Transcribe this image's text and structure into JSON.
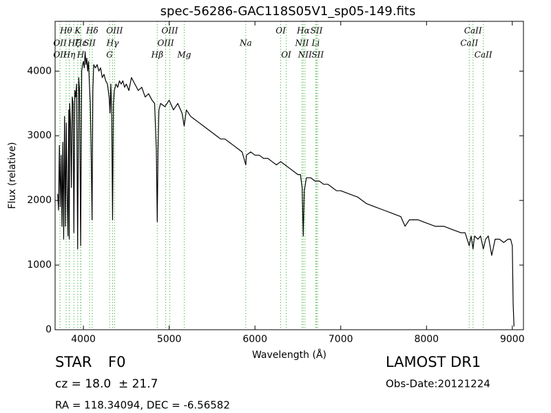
{
  "chart_data": {
    "type": "line",
    "title": "spec-56286-GAC118S05V1_sp05-149.fits",
    "x_label": "Wavelength (Å)",
    "y_label": "Flux (relative)",
    "xlim": [
      3670,
      9130
    ],
    "ylim": [
      0,
      4770
    ],
    "xticks": [
      4000,
      5000,
      6000,
      7000,
      8000,
      9000
    ],
    "yticks": [
      0,
      1000,
      2000,
      3000,
      4000
    ],
    "color": "#000000",
    "line_color": "#22aa22",
    "x": [
      3700,
      3710,
      3720,
      3730,
      3740,
      3750,
      3760,
      3770,
      3780,
      3790,
      3800,
      3810,
      3820,
      3830,
      3835,
      3840,
      3850,
      3860,
      3870,
      3880,
      3889,
      3900,
      3910,
      3920,
      3933,
      3945,
      3955,
      3968,
      3980,
      3990,
      4000,
      4010,
      4020,
      4030,
      4040,
      4050,
      4060,
      4070,
      4080,
      4090,
      4101,
      4110,
      4120,
      4140,
      4160,
      4180,
      4200,
      4220,
      4240,
      4260,
      4280,
      4300,
      4310,
      4320,
      4330,
      4340,
      4350,
      4360,
      4380,
      4400,
      4420,
      4440,
      4460,
      4480,
      4500,
      4530,
      4560,
      4600,
      4640,
      4680,
      4720,
      4760,
      4800,
      4830,
      4850,
      4861,
      4870,
      4880,
      4900,
      4950,
      5000,
      5050,
      5100,
      5150,
      5175,
      5200,
      5250,
      5300,
      5350,
      5400,
      5450,
      5500,
      5550,
      5600,
      5650,
      5700,
      5750,
      5800,
      5850,
      5893,
      5900,
      5950,
      6000,
      6050,
      6100,
      6150,
      6200,
      6250,
      6300,
      6350,
      6400,
      6450,
      6500,
      6530,
      6550,
      6563,
      6575,
      6600,
      6650,
      6700,
      6750,
      6800,
      6850,
      6900,
      6950,
      7000,
      7100,
      7200,
      7300,
      7400,
      7500,
      7600,
      7700,
      7750,
      7800,
      7900,
      8000,
      8100,
      8200,
      8300,
      8400,
      8450,
      8498,
      8520,
      8542,
      8560,
      8600,
      8630,
      8662,
      8690,
      8720,
      8760,
      8800,
      8850,
      8900,
      8950,
      8980,
      9000,
      9010,
      9020
    ],
    "values": [
      2100,
      1850,
      2850,
      1900,
      2700,
      1600,
      2900,
      1400,
      3300,
      1600,
      3200,
      2100,
      1450,
      3400,
      1400,
      3500,
      3200,
      2200,
      3600,
      3500,
      1500,
      3700,
      3600,
      3800,
      1250,
      3900,
      3700,
      1300,
      4000,
      4100,
      4150,
      4050,
      4300,
      4100,
      4200,
      4000,
      4150,
      3800,
      3500,
      2800,
      1700,
      3700,
      4100,
      4050,
      4100,
      4000,
      4050,
      3900,
      3950,
      3850,
      3800,
      3600,
      3350,
      3800,
      3300,
      1700,
      3500,
      3700,
      3800,
      3750,
      3850,
      3800,
      3850,
      3750,
      3800,
      3700,
      3900,
      3800,
      3700,
      3750,
      3600,
      3650,
      3550,
      3500,
      2800,
      1670,
      2800,
      3400,
      3500,
      3450,
      3550,
      3400,
      3500,
      3350,
      3150,
      3400,
      3300,
      3250,
      3200,
      3150,
      3100,
      3050,
      3000,
      2950,
      2950,
      2900,
      2850,
      2800,
      2750,
      2550,
      2700,
      2750,
      2700,
      2700,
      2650,
      2650,
      2600,
      2550,
      2600,
      2550,
      2500,
      2450,
      2400,
      2400,
      2200,
      1450,
      2150,
      2350,
      2350,
      2300,
      2300,
      2250,
      2250,
      2200,
      2150,
      2150,
      2100,
      2050,
      1950,
      1900,
      1850,
      1800,
      1750,
      1600,
      1700,
      1700,
      1650,
      1600,
      1600,
      1550,
      1500,
      1500,
      1300,
      1450,
      1250,
      1450,
      1400,
      1450,
      1250,
      1400,
      1450,
      1150,
      1400,
      1400,
      1350,
      1400,
      1400,
      1300,
      400,
      50
    ],
    "lines": [
      {
        "label": "OII",
        "wavelength": 3727
      },
      {
        "label": "OII",
        "wavelength": 3727
      },
      {
        "label": "Hθ",
        "wavelength": 3798
      },
      {
        "label": "Hη",
        "wavelength": 3835
      },
      {
        "label": "Hζ",
        "wavelength": 3889
      },
      {
        "label": "K",
        "wavelength": 3934
      },
      {
        "label": "H",
        "wavelength": 3968
      },
      {
        "label": "Hε",
        "wavelength": 3970
      },
      {
        "label": "SII",
        "wavelength": 4072
      },
      {
        "label": "Hδ",
        "wavelength": 4102
      },
      {
        "label": "G",
        "wavelength": 4305
      },
      {
        "label": "Hγ",
        "wavelength": 4340
      },
      {
        "label": "OIII",
        "wavelength": 4363
      },
      {
        "label": "Hβ",
        "wavelength": 4861
      },
      {
        "label": "OIII",
        "wavelength": 4959
      },
      {
        "label": "OIII",
        "wavelength": 5007
      },
      {
        "label": "Mg",
        "wavelength": 5175
      },
      {
        "label": "Na",
        "wavelength": 5893
      },
      {
        "label": "OI",
        "wavelength": 6300
      },
      {
        "label": "OI",
        "wavelength": 6364
      },
      {
        "label": "NII",
        "wavelength": 6548
      },
      {
        "label": "Hα",
        "wavelength": 6563
      },
      {
        "label": "NII",
        "wavelength": 6583
      },
      {
        "label": "Li",
        "wavelength": 6708
      },
      {
        "label": "SII",
        "wavelength": 6717
      },
      {
        "label": "SII",
        "wavelength": 6731
      },
      {
        "label": "CaII",
        "wavelength": 8498
      },
      {
        "label": "CaII",
        "wavelength": 8542
      },
      {
        "label": "CaII",
        "wavelength": 8662
      }
    ],
    "object_class": "STAR",
    "subclass": "F0",
    "redshift": "cz = 18.0  ± 21.7",
    "survey": "LAMOST DR1",
    "obs_date": "Obs-Date:20121224",
    "coordinates": "RA = 118.34094, DEC = -6.56582"
  }
}
